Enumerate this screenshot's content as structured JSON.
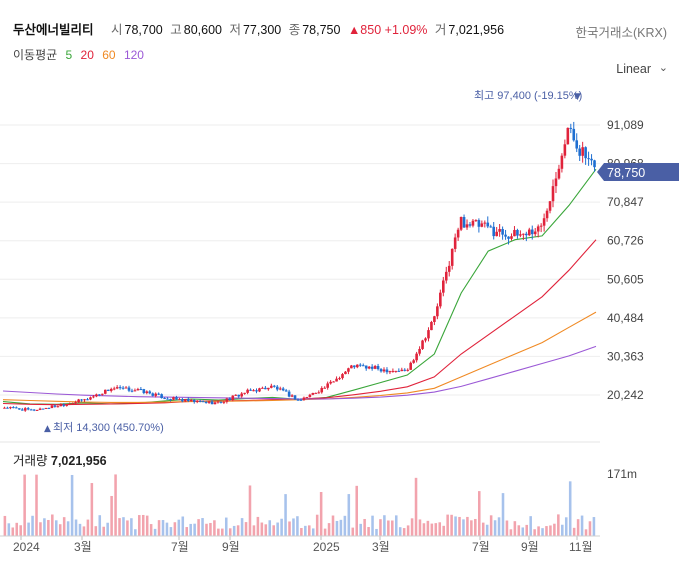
{
  "header": {
    "name": "두산에너빌리티",
    "open_label": "시",
    "open": "78,700",
    "high_label": "고",
    "high": "80,600",
    "low_label": "저",
    "low": "77,300",
    "close_label": "종",
    "close": "78,750",
    "change": "▲850",
    "change_pct": "+1.09%",
    "volume_label": "거",
    "volume": "7,021,956",
    "exchange": "한국거래소(KRX)"
  },
  "ma_legend": {
    "label": "이동평균",
    "items": [
      {
        "period": "5",
        "color": "#3aa63a"
      },
      {
        "period": "20",
        "color": "#e0233b"
      },
      {
        "period": "60",
        "color": "#f08a24"
      },
      {
        "period": "120",
        "color": "#9b59d6"
      }
    ]
  },
  "scale_mode": "Linear",
  "price_axis": {
    "ticks": [
      "91,089",
      "80,968",
      "70,847",
      "60,726",
      "50,605",
      "40,484",
      "30,363",
      "20,242"
    ],
    "current_label": "78,750"
  },
  "annotations": {
    "high": "최고 97,400 (-19.15%)",
    "low": "최저 14,300 (450.70%)"
  },
  "volume_panel": {
    "title_label": "거래량",
    "title_value": "7,021,956",
    "tick": "171m"
  },
  "x_axis": {
    "ticks": [
      "2024",
      "3월",
      "7월",
      "9월",
      "2025",
      "3월",
      "7월",
      "9월",
      "11월"
    ]
  },
  "colors": {
    "up": "#e0233b",
    "down": "#1f6fd1",
    "up_vol": "#f2a3ad",
    "down_vol": "#a7c2ec",
    "badge": "#4a5fa5"
  },
  "chart_data": {
    "type": "candlestick",
    "x": [
      "2024-01",
      "2024-02",
      "2024-03",
      "2024-04",
      "2024-05",
      "2024-06",
      "2024-07",
      "2024-08",
      "2024-09",
      "2024-10",
      "2024-11",
      "2024-12",
      "2025-01",
      "2025-02",
      "2025-03",
      "2025-04",
      "2025-05",
      "2025-06",
      "2025-07",
      "2025-08",
      "2025-09",
      "2025-10",
      "2025-11"
    ],
    "series": [
      {
        "values": [
          17000,
          16200,
          17500,
          19000,
          22000,
          21500,
          19500,
          18500,
          18200,
          21000,
          22500,
          18800,
          22500,
          28000,
          27000,
          26500,
          40000,
          66000,
          64000,
          62000,
          64000,
          90000,
          78750
        ]
      },
      {
        "values": [
          18500,
          17900,
          17800,
          18200,
          17900,
          18100,
          18700,
          19200,
          18900,
          19300,
          19600,
          19100,
          19600,
          21500,
          23500,
          25500,
          31000,
          47000,
          58000,
          61000,
          62000,
          70000,
          79500
        ]
      },
      {
        "values": [
          18000,
          17800,
          17700,
          17800,
          17900,
          18000,
          18200,
          18600,
          18700,
          18800,
          19000,
          19200,
          19500,
          20300,
          21200,
          22400,
          25000,
          31000,
          36000,
          41000,
          46000,
          53000,
          61000
        ]
      },
      {
        "values": [
          19000,
          18800,
          18600,
          18400,
          18300,
          18300,
          18400,
          18500,
          18600,
          18700,
          18800,
          19000,
          19200,
          19600,
          20100,
          20800,
          22000,
          25000,
          28000,
          31000,
          34000,
          38000,
          42000
        ]
      },
      {
        "values": [
          21300,
          20900,
          20500,
          20200,
          20000,
          19800,
          19700,
          19600,
          19500,
          19400,
          19300,
          19200,
          19200,
          19400,
          19700,
          20200,
          21000,
          22500,
          24500,
          26500,
          28500,
          30500,
          33000
        ]
      }
    ],
    "ylim": [
      14300,
      97400
    ]
  }
}
